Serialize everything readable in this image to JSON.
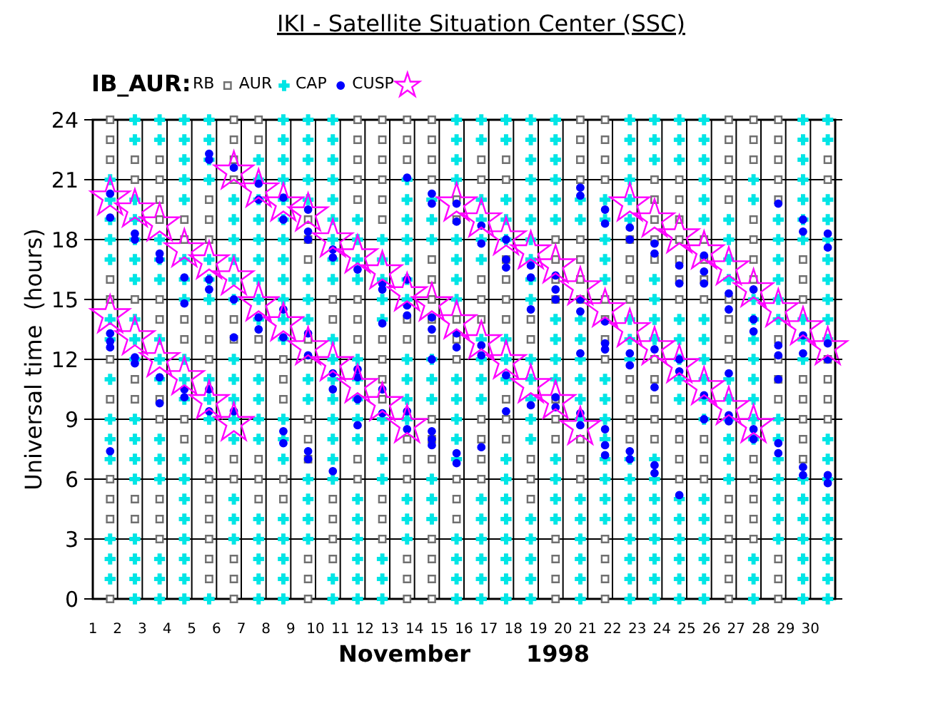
{
  "chart_data": {
    "type": "scatter",
    "title": "IKI - Satellite Situation Center (SSC)",
    "xlabel": "November       1998",
    "ylabel": "Universal time  (hours)",
    "legend_title": "IB_AUR:",
    "legend": "top left",
    "grid": true,
    "xlim": [
      1,
      31
    ],
    "xticks": [
      1,
      2,
      3,
      4,
      5,
      6,
      7,
      8,
      9,
      10,
      11,
      12,
      13,
      14,
      15,
      16,
      17,
      18,
      19,
      20,
      21,
      22,
      23,
      24,
      25,
      26,
      27,
      28,
      29,
      30
    ],
    "ylim": [
      0,
      24
    ],
    "yticks": [
      0,
      3,
      6,
      9,
      12,
      15,
      18,
      21,
      24
    ],
    "series": [
      {
        "name": "RB",
        "color": "#707070",
        "marker": "square",
        "x": [
          1.7,
          1.7,
          1.7,
          1.7,
          1.7,
          1.7,
          1.7,
          1.7,
          1.7,
          1.7,
          1.7,
          2.7,
          2.7,
          2.7,
          2.7,
          2.7,
          2.7,
          2.7,
          3.7,
          3.7,
          3.7,
          3.7,
          3.7,
          3.7,
          3.7,
          3.7,
          3.7,
          3.7,
          3.7,
          4.7,
          4.7,
          4.7,
          4.7,
          4.7,
          4.7,
          5.7,
          5.7,
          5.7,
          5.7,
          5.7,
          5.7,
          5.7,
          5.7,
          5.7,
          5.7,
          5.7,
          5.7,
          5.7,
          5.7,
          6.7,
          6.7,
          6.7,
          6.7,
          6.7,
          6.7,
          6.7,
          6.7,
          6.7,
          6.7,
          6.7,
          7.7,
          7.7,
          7.7,
          7.7,
          7.7,
          7.7,
          7.7,
          8.7,
          8.7,
          8.7,
          8.7,
          8.7,
          9.7,
          9.7,
          9.7,
          9.7,
          9.7,
          9.7,
          9.7,
          9.7,
          9.7,
          9.7,
          9.7,
          10.7,
          10.7,
          10.7,
          10.7,
          10.7,
          10.7,
          11.7,
          11.7,
          11.7,
          11.7,
          11.7,
          11.7,
          11.7,
          11.7,
          11.7,
          11.7,
          12.7,
          12.7,
          12.7,
          12.7,
          12.7,
          12.7,
          12.7,
          12.7,
          12.7,
          12.7,
          12.7,
          12.7,
          12.7,
          13.7,
          13.7,
          13.7,
          13.7,
          13.7,
          13.7,
          13.7,
          13.7,
          13.7,
          13.7,
          13.7,
          14.7,
          14.7,
          14.7,
          14.7,
          14.7,
          14.7,
          14.7,
          14.7,
          14.7,
          14.7,
          14.7,
          14.7,
          14.7,
          14.7,
          14.7,
          14.7,
          15.7,
          15.7,
          15.7,
          15.7,
          15.7,
          15.7,
          15.7,
          15.7,
          16.7,
          16.7,
          16.7,
          16.7,
          16.7,
          16.7,
          16.7,
          16.7,
          16.7,
          17.7,
          17.7,
          17.7,
          17.7,
          17.7,
          17.7,
          17.7,
          17.7,
          17.7,
          18.7,
          18.7,
          18.7,
          18.7,
          18.7,
          19.7,
          19.7,
          19.7,
          19.7,
          19.7,
          19.7,
          19.7,
          19.7,
          19.7,
          19.7,
          19.7,
          20.7,
          20.7,
          20.7,
          20.7,
          20.7,
          20.7,
          20.7,
          20.7,
          20.7,
          20.7,
          20.7,
          21.7,
          21.7,
          21.7,
          21.7,
          21.7,
          21.7,
          21.7,
          21.7,
          21.7,
          21.7,
          21.7,
          21.7,
          22.7,
          22.7,
          22.7,
          22.7,
          22.7,
          22.7,
          22.7,
          22.7,
          23.7,
          23.7,
          23.7,
          23.7,
          23.7,
          23.7,
          23.7,
          23.7,
          23.7,
          23.7,
          24.7,
          24.7,
          24.7,
          24.7,
          24.7,
          24.7,
          24.7,
          24.7,
          24.7,
          24.7,
          24.7,
          25.7,
          25.7,
          25.7,
          25.7,
          25.7,
          25.7,
          25.7,
          26.7,
          26.7,
          26.7,
          26.7,
          26.7,
          26.7,
          26.7,
          26.7,
          26.7,
          26.7,
          26.7,
          26.7,
          26.7,
          26.7,
          26.7,
          27.7,
          27.7,
          27.7,
          27.7,
          27.7,
          27.7,
          27.7,
          27.7,
          27.7,
          27.7,
          27.7,
          27.7,
          28.7,
          28.7,
          28.7,
          28.7,
          28.7,
          28.7,
          28.7,
          28.7,
          28.7,
          28.7,
          28.7,
          28.7,
          29.7,
          29.7,
          29.7,
          29.7,
          29.7,
          29.7,
          29.7,
          29.7,
          30.7,
          30.7,
          30.7,
          30.7,
          30.7,
          30.7
        ],
        "values": [
          0,
          4,
          5,
          6,
          10,
          12,
          15,
          16,
          22,
          23,
          24,
          4,
          5,
          10,
          11,
          15,
          21,
          22,
          3,
          4,
          5,
          9,
          10,
          14,
          15,
          19,
          20,
          21,
          22,
          8,
          9,
          13,
          14,
          18,
          19,
          1,
          2,
          3,
          4,
          5,
          6,
          7,
          8,
          12,
          13,
          14,
          18,
          19,
          20,
          0,
          1,
          2,
          6,
          7,
          13,
          14,
          21,
          22,
          23,
          24,
          5,
          6,
          7,
          12,
          13,
          23,
          24,
          5,
          6,
          10,
          11,
          12,
          0,
          1,
          2,
          7,
          8,
          9,
          12,
          13,
          17,
          18,
          19,
          2,
          3,
          4,
          5,
          14,
          15,
          6,
          7,
          13,
          14,
          15,
          20,
          21,
          22,
          23,
          24,
          3,
          4,
          5,
          10,
          11,
          12,
          13,
          19,
          20,
          21,
          22,
          23,
          24,
          0,
          1,
          2,
          6,
          7,
          8,
          13,
          14,
          22,
          23,
          24,
          0,
          1,
          2,
          3,
          7,
          8,
          9,
          13,
          14,
          15,
          16,
          17,
          21,
          22,
          23,
          24,
          4,
          5,
          6,
          12,
          13,
          14,
          19,
          20,
          6,
          7,
          8,
          9,
          14,
          15,
          16,
          21,
          22,
          8,
          9,
          10,
          14,
          15,
          16,
          17,
          21,
          22,
          5,
          6,
          7,
          13,
          14,
          0,
          1,
          2,
          3,
          8,
          9,
          10,
          15,
          16,
          17,
          18,
          6,
          7,
          8,
          15,
          16,
          17,
          18,
          21,
          22,
          23,
          24,
          0,
          1,
          2,
          3,
          12,
          13,
          14,
          15,
          21,
          22,
          23,
          24,
          8,
          9,
          10,
          11,
          15,
          16,
          17,
          18,
          8,
          9,
          10,
          11,
          12,
          17,
          18,
          19,
          20,
          21,
          6,
          7,
          8,
          9,
          15,
          16,
          17,
          18,
          19,
          20,
          21,
          6,
          7,
          8,
          15,
          16,
          17,
          18,
          0,
          1,
          2,
          3,
          4,
          5,
          12,
          13,
          14,
          15,
          20,
          21,
          22,
          23,
          24,
          3,
          4,
          5,
          6,
          7,
          16,
          17,
          18,
          19,
          22,
          23,
          24,
          0,
          1,
          2,
          10,
          11,
          12,
          13,
          20,
          21,
          22,
          23,
          24,
          7,
          8,
          9,
          10,
          11,
          15,
          16,
          17,
          9,
          10,
          11,
          12,
          21,
          22
        ]
      },
      {
        "name": "AUR",
        "color": "#00e5e5",
        "marker": "cross",
        "x": [
          1.7,
          1.7,
          1.7,
          1.7,
          1.7,
          1.7,
          1.7,
          1.7,
          1.7,
          1.7,
          1.7,
          1.7,
          1.7,
          1.7,
          2.7,
          2.7,
          2.7,
          2.7,
          2.7,
          2.7,
          2.7,
          2.7,
          2.7,
          2.7,
          2.7,
          2.7,
          2.7,
          2.7,
          2.7,
          2.7,
          2.7,
          2.7,
          3.7,
          3.7,
          3.7,
          3.7,
          3.7,
          3.7,
          3.7,
          3.7,
          3.7,
          3.7,
          3.7,
          3.7,
          3.7,
          3.7,
          4.7,
          4.7,
          4.7,
          4.7,
          4.7,
          4.7,
          4.7,
          4.7,
          4.7,
          4.7,
          4.7,
          4.7,
          4.7,
          4.7,
          4.7,
          4.7,
          4.7,
          4.7,
          4.7,
          5.7,
          5.7,
          5.7,
          5.7,
          5.7,
          5.7,
          5.7,
          5.7,
          5.7,
          5.7,
          5.7,
          6.7,
          6.7,
          6.7,
          6.7,
          6.7,
          6.7,
          6.7,
          6.7,
          6.7,
          6.7,
          6.7,
          6.7,
          6.7,
          6.7,
          7.7,
          7.7,
          7.7,
          7.7,
          7.7,
          7.7,
          7.7,
          7.7,
          7.7,
          7.7,
          7.7,
          7.7,
          7.7,
          7.7,
          7.7,
          7.7,
          7.7,
          7.7,
          8.7,
          8.7,
          8.7,
          8.7,
          8.7,
          8.7,
          8.7,
          8.7,
          8.7,
          8.7,
          8.7,
          8.7,
          8.7,
          8.7,
          8.7,
          8.7,
          8.7,
          8.7,
          8.7,
          8.7,
          9.7,
          9.7,
          9.7,
          9.7,
          9.7,
          9.7,
          9.7,
          9.7,
          9.7,
          9.7,
          9.7,
          9.7,
          9.7,
          9.7,
          10.7,
          10.7,
          10.7,
          10.7,
          10.7,
          10.7,
          10.7,
          10.7,
          10.7,
          10.7,
          10.7,
          10.7,
          10.7,
          10.7,
          10.7,
          10.7,
          10.7,
          10.7,
          10.7,
          11.7,
          11.7,
          11.7,
          11.7,
          11.7,
          11.7,
          11.7,
          11.7,
          11.7,
          11.7,
          11.7,
          11.7,
          11.7,
          11.7,
          11.7,
          12.7,
          12.7,
          12.7,
          12.7,
          12.7,
          12.7,
          12.7,
          12.7,
          12.7,
          12.7,
          12.7,
          12.7,
          13.7,
          13.7,
          13.7,
          13.7,
          13.7,
          13.7,
          13.7,
          13.7,
          13.7,
          13.7,
          13.7,
          13.7,
          13.7,
          13.7,
          14.7,
          14.7,
          14.7,
          14.7,
          14.7,
          14.7,
          14.7,
          14.7,
          14.7,
          15.7,
          15.7,
          15.7,
          15.7,
          15.7,
          15.7,
          15.7,
          15.7,
          15.7,
          15.7,
          15.7,
          15.7,
          15.7,
          15.7,
          15.7,
          15.7,
          15.7,
          16.7,
          16.7,
          16.7,
          16.7,
          16.7,
          16.7,
          16.7,
          16.7,
          16.7,
          16.7,
          16.7,
          16.7,
          16.7,
          16.7,
          16.7,
          16.7,
          17.7,
          17.7,
          17.7,
          17.7,
          17.7,
          17.7,
          17.7,
          17.7,
          17.7,
          17.7,
          17.7,
          17.7,
          17.7,
          17.7,
          17.7,
          17.7,
          18.7,
          18.7,
          18.7,
          18.7,
          18.7,
          18.7,
          18.7,
          18.7,
          18.7,
          18.7,
          18.7,
          18.7,
          18.7,
          18.7,
          18.7,
          18.7,
          18.7,
          18.7,
          18.7,
          18.7,
          19.7,
          19.7,
          19.7,
          19.7,
          19.7,
          19.7,
          19.7,
          19.7,
          19.7,
          19.7,
          19.7,
          19.7,
          19.7,
          19.7,
          20.7,
          20.7,
          20.7,
          20.7,
          20.7,
          20.7,
          20.7,
          20.7,
          20.7,
          20.7,
          20.7,
          20.7,
          20.7,
          20.7,
          21.7,
          21.7,
          21.7,
          21.7,
          21.7,
          21.7,
          21.7,
          21.7,
          21.7,
          21.7,
          21.7,
          21.7,
          21.7,
          22.7,
          22.7,
          22.7,
          22.7,
          22.7,
          22.7,
          22.7,
          22.7,
          22.7,
          22.7,
          22.7,
          22.7,
          22.7,
          22.7,
          22.7,
          22.7,
          22.7,
          23.7,
          23.7,
          23.7,
          23.7,
          23.7,
          23.7,
          23.7,
          23.7,
          23.7,
          23.7,
          23.7,
          23.7,
          23.7,
          23.7,
          23.7,
          24.7,
          24.7,
          24.7,
          24.7,
          24.7,
          24.7,
          24.7,
          24.7,
          24.7,
          24.7,
          24.7,
          24.7,
          24.7,
          24.7,
          25.7,
          25.7,
          25.7,
          25.7,
          25.7,
          25.7,
          25.7,
          25.7,
          25.7,
          25.7,
          25.7,
          25.7,
          25.7,
          25.7,
          25.7,
          25.7,
          25.7,
          25.7,
          26.7,
          26.7,
          26.7,
          26.7,
          26.7,
          26.7,
          26.7,
          26.7,
          26.7,
          26.7,
          27.7,
          27.7,
          27.7,
          27.7,
          27.7,
          27.7,
          27.7,
          27.7,
          27.7,
          27.7,
          27.7,
          27.7,
          27.7,
          28.7,
          28.7,
          28.7,
          28.7,
          28.7,
          28.7,
          28.7,
          28.7,
          28.7,
          28.7,
          28.7,
          28.7,
          28.7,
          29.7,
          29.7,
          29.7,
          29.7,
          29.7,
          29.7,
          29.7,
          29.7,
          29.7,
          29.7,
          29.7,
          29.7,
          29.7,
          29.7,
          29.7,
          29.7,
          29.7,
          30.7,
          30.7,
          30.7,
          30.7,
          30.7,
          30.7,
          30.7,
          30.7,
          30.7,
          30.7,
          30.7,
          30.7,
          30.7,
          30.7,
          30.7,
          30.7,
          30.7,
          30.7,
          30.7
        ],
        "values": [
          1,
          2,
          3,
          7,
          8,
          9,
          11,
          13,
          14,
          17,
          18,
          19,
          20,
          21,
          0,
          1,
          2,
          3,
          6,
          7,
          8,
          9,
          12,
          13,
          14,
          16,
          17,
          18,
          19,
          20,
          23,
          24,
          0,
          1,
          2,
          6,
          7,
          8,
          11,
          12,
          13,
          16,
          17,
          18,
          23,
          24,
          0,
          1,
          2,
          3,
          4,
          5,
          6,
          7,
          10,
          11,
          12,
          15,
          16,
          17,
          20,
          21,
          22,
          23,
          24,
          0,
          9,
          10,
          11,
          15,
          16,
          17,
          21,
          22,
          23,
          24,
          3,
          4,
          5,
          8,
          9,
          10,
          11,
          12,
          15,
          16,
          17,
          18,
          19,
          20,
          0,
          1,
          2,
          3,
          4,
          8,
          9,
          10,
          11,
          14,
          15,
          16,
          17,
          18,
          19,
          20,
          21,
          22,
          0,
          1,
          2,
          3,
          4,
          7,
          8,
          9,
          13,
          14,
          15,
          16,
          17,
          18,
          19,
          20,
          21,
          22,
          23,
          24,
          3,
          4,
          5,
          6,
          10,
          11,
          14,
          15,
          16,
          20,
          21,
          22,
          23,
          24,
          0,
          1,
          6,
          7,
          8,
          9,
          10,
          11,
          12,
          13,
          16,
          17,
          18,
          19,
          20,
          21,
          22,
          23,
          24,
          0,
          1,
          2,
          3,
          4,
          5,
          8,
          9,
          10,
          11,
          12,
          16,
          17,
          18,
          19,
          0,
          1,
          2,
          6,
          7,
          8,
          9,
          14,
          15,
          16,
          17,
          18,
          3,
          4,
          5,
          9,
          10,
          11,
          12,
          15,
          16,
          17,
          18,
          19,
          20,
          21,
          4,
          5,
          6,
          10,
          11,
          12,
          18,
          19,
          20,
          0,
          1,
          2,
          3,
          7,
          8,
          9,
          10,
          11,
          15,
          16,
          17,
          18,
          21,
          22,
          23,
          24,
          0,
          1,
          2,
          3,
          4,
          5,
          10,
          11,
          12,
          13,
          17,
          18,
          19,
          20,
          23,
          24,
          0,
          1,
          2,
          3,
          4,
          5,
          6,
          7,
          11,
          12,
          13,
          18,
          19,
          20,
          23,
          24,
          0,
          1,
          2,
          3,
          4,
          8,
          9,
          10,
          11,
          12,
          15,
          16,
          17,
          18,
          19,
          20,
          21,
          22,
          23,
          24,
          4,
          5,
          6,
          7,
          11,
          12,
          13,
          14,
          19,
          20,
          21,
          22,
          23,
          24,
          0,
          1,
          2,
          3,
          4,
          5,
          9,
          10,
          11,
          12,
          13,
          14,
          19,
          20,
          4,
          5,
          6,
          7,
          8,
          9,
          10,
          11,
          16,
          17,
          18,
          19,
          20,
          0,
          1,
          2,
          3,
          4,
          5,
          6,
          7,
          12,
          13,
          14,
          19,
          20,
          21,
          22,
          23,
          24,
          0,
          1,
          2,
          3,
          4,
          5,
          6,
          7,
          13,
          14,
          15,
          16,
          22,
          23,
          24,
          0,
          1,
          2,
          3,
          4,
          5,
          10,
          11,
          12,
          13,
          14,
          22,
          23,
          24,
          0,
          1,
          2,
          3,
          4,
          5,
          9,
          10,
          11,
          12,
          13,
          14,
          19,
          20,
          21,
          22,
          23,
          24,
          6,
          7,
          8,
          9,
          10,
          11,
          16,
          17,
          18,
          19,
          0,
          1,
          2,
          8,
          9,
          10,
          11,
          12,
          13,
          14,
          15,
          20,
          21,
          3,
          4,
          5,
          6,
          7,
          8,
          9,
          14,
          15,
          16,
          17,
          18,
          19,
          0,
          1,
          2,
          3,
          4,
          5,
          6,
          12,
          13,
          14,
          18,
          19,
          20,
          21,
          22,
          23,
          24,
          0,
          1,
          2,
          3,
          4,
          5,
          6,
          7,
          8,
          13,
          14,
          15,
          16,
          17,
          18,
          19,
          20,
          23,
          24
        ]
      },
      {
        "name": "CAP",
        "color": "#0000ff",
        "marker": "circle",
        "x": [
          1.7,
          1.7,
          1.7,
          1.7,
          1.7,
          1.7,
          2.7,
          2.7,
          2.7,
          2.7,
          3.7,
          3.7,
          3.7,
          3.7,
          4.7,
          4.7,
          4.7,
          4.7,
          5.7,
          5.7,
          5.7,
          5.7,
          5.7,
          5.7,
          6.7,
          6.7,
          6.7,
          6.7,
          7.7,
          7.7,
          7.7,
          7.7,
          8.7,
          8.7,
          8.7,
          8.7,
          8.7,
          8.7,
          9.7,
          9.7,
          9.7,
          9.7,
          9.7,
          9.7,
          9.7,
          10.7,
          10.7,
          10.7,
          10.7,
          10.7,
          11.7,
          11.7,
          11.7,
          11.7,
          11.7,
          12.7,
          12.7,
          12.7,
          12.7,
          12.7,
          13.7,
          13.7,
          13.7,
          13.7,
          13.7,
          13.7,
          14.7,
          14.7,
          14.7,
          14.7,
          14.7,
          14.7,
          14.7,
          14.7,
          15.7,
          15.7,
          15.7,
          15.7,
          15.7,
          15.7,
          16.7,
          16.7,
          16.7,
          16.7,
          16.7,
          17.7,
          17.7,
          17.7,
          17.7,
          17.7,
          18.7,
          18.7,
          18.7,
          18.7,
          19.7,
          19.7,
          19.7,
          19.7,
          19.7,
          20.7,
          20.7,
          20.7,
          20.7,
          20.7,
          20.7,
          20.7,
          21.7,
          21.7,
          21.7,
          21.7,
          21.7,
          21.7,
          21.7,
          21.7,
          22.7,
          22.7,
          22.7,
          22.7,
          22.7,
          22.7,
          23.7,
          23.7,
          23.7,
          23.7,
          23.7,
          23.7,
          24.7,
          24.7,
          24.7,
          24.7,
          24.7,
          25.7,
          25.7,
          25.7,
          25.7,
          25.7,
          26.7,
          26.7,
          26.7,
          26.7,
          26.7,
          27.7,
          27.7,
          27.7,
          27.7,
          27.7,
          28.7,
          28.7,
          28.7,
          28.7,
          28.7,
          28.7,
          29.7,
          29.7,
          29.7,
          29.7,
          29.7,
          29.7,
          30.7,
          30.7,
          30.7,
          30.7,
          30.7,
          30.7
        ],
        "values": [
          20.3,
          19.1,
          13.3,
          12.9,
          12.6,
          7.4,
          18.3,
          18.0,
          12.1,
          11.8,
          17.3,
          17.0,
          11.1,
          9.8,
          16.1,
          14.8,
          10.5,
          10.1,
          22.3,
          22.0,
          16.0,
          15.5,
          10.5,
          9.4,
          21.6,
          15.0,
          13.1,
          9.4,
          20.8,
          20.0,
          14.1,
          13.5,
          20.1,
          19.0,
          14.5,
          13.1,
          8.4,
          7.8,
          19.5,
          18.4,
          18.0,
          13.3,
          12.2,
          7.4,
          7.0,
          17.5,
          17.1,
          11.3,
          10.5,
          6.4,
          16.5,
          11.5,
          11.1,
          10.0,
          8.7,
          15.8,
          15.5,
          13.8,
          10.5,
          9.3,
          21.1,
          16.0,
          14.7,
          14.2,
          9.4,
          8.5,
          20.3,
          19.8,
          14.1,
          13.5,
          12.0,
          8.4,
          8.0,
          7.7,
          19.8,
          18.9,
          13.3,
          12.6,
          7.3,
          6.8,
          18.7,
          17.8,
          12.7,
          12.2,
          7.6,
          18.0,
          17.0,
          16.6,
          11.2,
          9.4,
          16.7,
          16.1,
          14.5,
          9.7,
          16.2,
          15.5,
          15.0,
          10.1,
          9.6,
          20.6,
          20.2,
          15.0,
          14.4,
          12.3,
          9.3,
          8.7,
          19.5,
          18.8,
          13.9,
          12.8,
          12.5,
          8.5,
          7.7,
          7.2,
          18.6,
          18.0,
          12.3,
          11.7,
          7.4,
          7.0,
          17.8,
          17.3,
          12.5,
          10.6,
          6.7,
          6.3,
          16.7,
          15.8,
          12.0,
          11.4,
          5.2,
          17.2,
          16.4,
          15.8,
          10.2,
          9.0,
          15.3,
          14.5,
          11.3,
          9.2,
          8.9,
          15.5,
          14.0,
          13.4,
          8.5,
          8.0,
          19.8,
          12.7,
          12.2,
          11.0,
          7.8,
          7.3,
          19.0,
          18.4,
          13.2,
          12.3,
          6.6,
          6.2,
          18.3,
          17.6,
          12.8,
          12.0,
          6.2,
          5.8
        ]
      },
      {
        "name": "CUSP",
        "color": "#ff00ff",
        "marker": "star",
        "x": [
          1.7,
          1.7,
          2.7,
          2.7,
          3.7,
          3.7,
          4.7,
          4.7,
          5.7,
          5.7,
          6.7,
          6.7,
          6.7,
          7.7,
          7.7,
          8.7,
          8.7,
          9.7,
          9.7,
          10.7,
          10.7,
          11.7,
          11.7,
          12.7,
          12.7,
          13.7,
          13.7,
          14.7,
          15.7,
          15.7,
          16.7,
          16.7,
          17.7,
          17.7,
          18.7,
          18.7,
          19.7,
          19.7,
          20.7,
          20.7,
          21.7,
          22.7,
          22.7,
          23.7,
          23.7,
          24.7,
          24.7,
          25.7,
          25.7,
          26.7,
          26.7,
          27.7,
          27.7,
          28.7,
          29.7,
          30.7
        ],
        "values": [
          20.1,
          14.2,
          19.5,
          13.1,
          18.8,
          12.0,
          17.5,
          11.1,
          16.9,
          9.9,
          21.4,
          16.1,
          8.8,
          20.5,
          14.8,
          19.8,
          13.8,
          19.3,
          12.6,
          18.0,
          11.8,
          17.2,
          10.7,
          16.4,
          9.8,
          15.3,
          8.7,
          14.8,
          19.8,
          13.9,
          19.0,
          12.9,
          18.1,
          11.9,
          17.4,
          10.7,
          16.7,
          9.9,
          15.6,
          8.6,
          14.5,
          19.8,
          13.5,
          19.0,
          12.6,
          18.2,
          11.7,
          17.4,
          10.6,
          16.6,
          9.6,
          15.5,
          8.7,
          14.5,
          13.6,
          12.6
        ]
      }
    ]
  }
}
